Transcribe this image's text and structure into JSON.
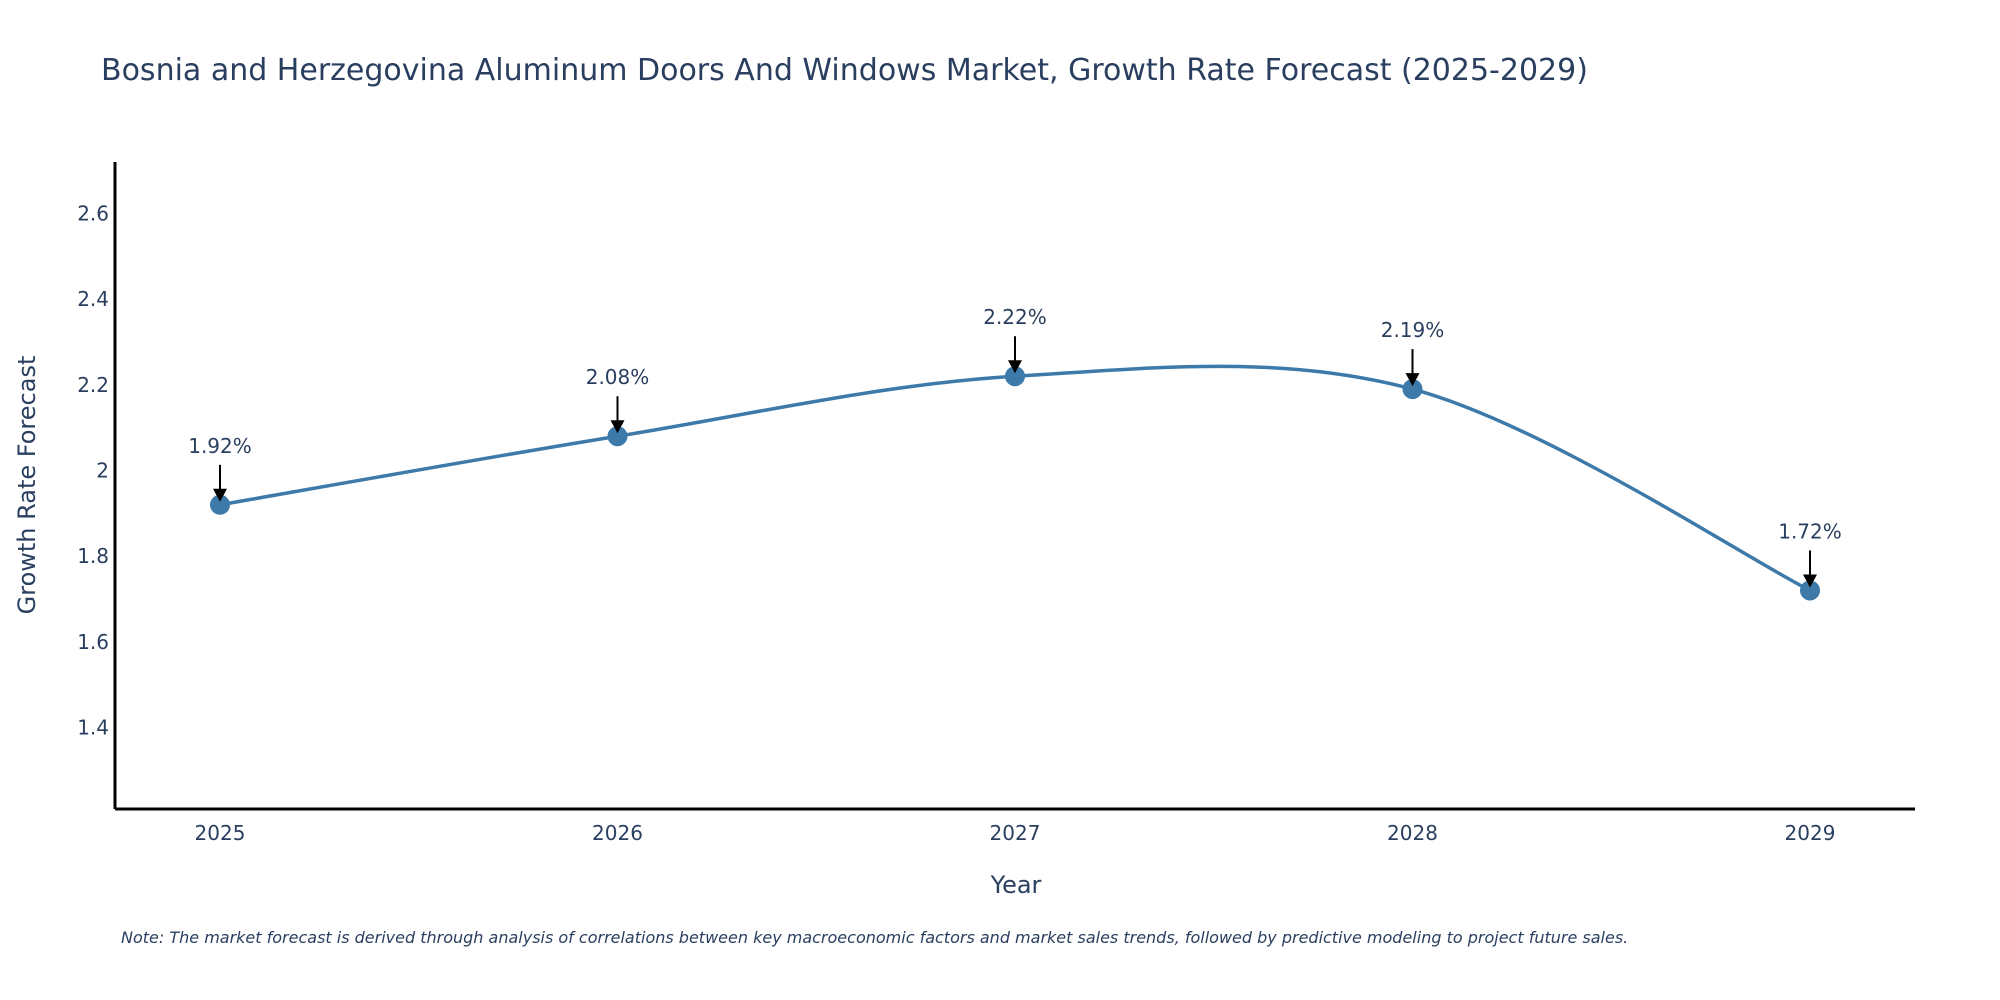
{
  "chart_data": {
    "type": "line",
    "title": "Bosnia and Herzegovina Aluminum Doors And Windows Market, Growth Rate Forecast (2025-2029)",
    "xlabel": "Year",
    "ylabel": "Growth Rate Forecast",
    "categories": [
      "2025",
      "2026",
      "2027",
      "2028",
      "2029"
    ],
    "values": [
      1.92,
      2.08,
      2.22,
      2.19,
      1.72
    ],
    "data_labels": [
      "1.92%",
      "2.08%",
      "2.22%",
      "2.19%",
      "1.72%"
    ],
    "yticks": [
      1.4,
      1.6,
      1.8,
      2,
      2.2,
      2.4,
      2.6
    ],
    "ytick_labels": [
      "1.4",
      "1.6",
      "1.8",
      "2",
      "2.2",
      "2.4",
      "2.6"
    ],
    "ylim": [
      1.21,
      2.72
    ],
    "line_shape": "spline",
    "grid": false,
    "line_color": "#3d7aaa",
    "marker_color": "#3d7aaa",
    "axis_color": "#000000",
    "text_color": "#2a3f5f"
  },
  "note": "Note: The market forecast is derived through analysis of correlations between key macroeconomic factors and market sales trends, followed by predictive modeling to project future sales."
}
